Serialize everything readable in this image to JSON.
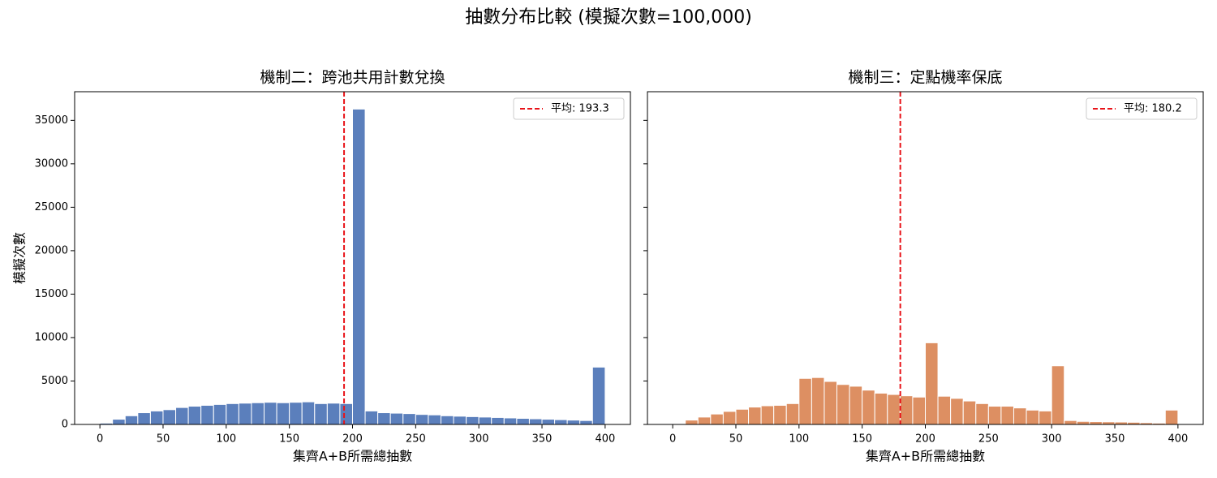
{
  "title": "抽數分布比較 (模擬次數=100,000)",
  "chart_data": [
    {
      "type": "histogram",
      "title": "機制二：跨池共用計數兌換",
      "xlabel": "集齊A+B所需總抽數",
      "ylabel": "模擬次數",
      "color": "#5b7fbc",
      "bins": [
        0,
        10,
        20,
        30,
        40,
        50,
        60,
        70,
        80,
        90,
        100,
        110,
        120,
        130,
        140,
        150,
        160,
        170,
        180,
        190,
        200,
        210,
        220,
        230,
        240,
        250,
        260,
        270,
        280,
        290,
        300,
        310,
        320,
        330,
        340,
        350,
        360,
        370,
        380,
        390,
        400
      ],
      "counts": [
        150,
        600,
        1000,
        1350,
        1550,
        1700,
        1950,
        2100,
        2200,
        2300,
        2400,
        2450,
        2500,
        2550,
        2500,
        2550,
        2600,
        2400,
        2450,
        2400,
        36300,
        1550,
        1350,
        1300,
        1250,
        1150,
        1100,
        1000,
        950,
        900,
        850,
        800,
        750,
        700,
        650,
        600,
        550,
        500,
        450,
        6600
      ],
      "vlines": [
        {
          "name": "平均: 193.3",
          "value": 193.3,
          "color": "#e8141a"
        }
      ],
      "xlim": [
        -20,
        420
      ],
      "xticks": [
        0,
        50,
        100,
        150,
        200,
        250,
        300,
        350,
        400
      ],
      "ylim": [
        0,
        38300
      ],
      "yticks": [
        0,
        5000,
        10000,
        15000,
        20000,
        25000,
        30000,
        35000
      ],
      "show_ytick_labels": true,
      "legend": "upper-right"
    },
    {
      "type": "histogram",
      "title": "機制三：定點機率保底",
      "xlabel": "集齊A+B所需總抽數",
      "color": "#dd8f62",
      "bins": [
        0,
        10,
        20,
        30,
        40,
        50,
        60,
        70,
        80,
        90,
        100,
        110,
        120,
        130,
        140,
        150,
        160,
        170,
        180,
        190,
        200,
        210,
        220,
        230,
        240,
        250,
        260,
        270,
        280,
        290,
        300,
        310,
        320,
        330,
        340,
        350,
        360,
        370,
        380,
        390,
        400
      ],
      "counts": [
        30,
        500,
        850,
        1200,
        1500,
        1750,
        2000,
        2150,
        2200,
        2400,
        5300,
        5400,
        4950,
        4600,
        4400,
        3950,
        3600,
        3450,
        3300,
        3150,
        9400,
        3250,
        3000,
        2700,
        2400,
        2100,
        2100,
        1900,
        1650,
        1550,
        6750,
        450,
        350,
        320,
        300,
        280,
        250,
        200,
        150,
        1650
      ],
      "vlines": [
        {
          "name": "平均: 180.2",
          "value": 180.2,
          "color": "#e8141a"
        }
      ],
      "xlim": [
        -20,
        420
      ],
      "xticks": [
        0,
        50,
        100,
        150,
        200,
        250,
        300,
        350,
        400
      ],
      "ylim": [
        0,
        38300
      ],
      "yticks": [
        0,
        5000,
        10000,
        15000,
        20000,
        25000,
        30000,
        35000
      ],
      "show_ytick_labels": false,
      "legend": "upper-right"
    }
  ]
}
